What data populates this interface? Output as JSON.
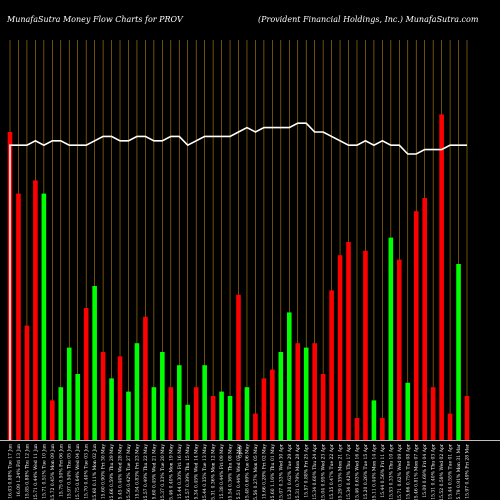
{
  "chart_data": {
    "type": "bar",
    "title_left": "MunafaSutra  Money Flow  Charts for PROV",
    "title_right": "(Provident Financial Holdings, Inc.) MunafaSutra.com",
    "categories": [
      "Tue 17 Jun",
      "Fri 13 Jun",
      "Thu 12 Jun",
      "Wed 11 Jun",
      "Tue 10 Jun",
      "Mon 09 Jun",
      "Fri 06 Jun",
      "Thu 05 Jun",
      "Wed 04 Jun",
      "Tue 03 Jun",
      "Mon 02 Jun",
      "Fri 30 May",
      "Thu 29 May",
      "Wed 28 May",
      "Tue 27 May",
      "Fri 23 May",
      "Thu 22 May",
      "Wed 21 May",
      "Tue 20 May",
      "Mon 19 May",
      "Fri 16 May",
      "Thu 15 May",
      "Wed 14 May",
      "Tue 13 May",
      "Mon 12 May",
      "Fri 09 May",
      "Thu 08 May",
      "Wed 07 May",
      "Tue 06 May",
      "Mon 05 May",
      "Fri 02 May",
      "Thu 01 May",
      "Wed 30 Apr",
      "Tue 29 Apr",
      "Mon 28 Apr",
      "Fri 25 Apr",
      "Thu 24 Apr",
      "Wed 23 Apr",
      "Tue 22 Apr",
      "Mon 21 Apr",
      "Thu 17 Apr",
      "Wed 16 Apr",
      "Tue 15 Apr",
      "Mon 14 Apr",
      "Fri 11 Apr",
      "Thu 10 Apr",
      "Wed 09 Apr",
      "Tue 08 Apr",
      "Mon 07 Apr",
      "Fri 04 Apr",
      "Thu 03 Apr",
      "Wed 02 Apr",
      "Tue 01 Apr",
      "Mon 31 Mar",
      "Fri 28 Mar"
    ],
    "tick_labels": [
      "16.03  0.88%",
      "16.09  1.24%",
      "15.85  0.88%",
      "15.71  0.44%",
      "15.71  0.51%",
      "15.72  0.45%",
      "15.75  0.50%",
      "15.97  0.54%",
      "15.75  0.64%",
      "15.70  0.40%",
      "15.60  0.11%",
      "15.60  0.90%",
      "15.66  0.59%",
      "15.45  0.44%",
      "15.56  0.42%",
      "15.54  0.83%",
      "15.57  0.49%",
      "15.60  0.45%",
      "15.37  0.33%",
      "15.46  0.40%",
      "15.44  0.30%",
      "15.57  0.39%",
      "15.34  0.45%",
      "15.44  0.35%",
      "15.31  0.36%",
      "15.38  0.44%",
      "15.54  0.36%",
      "15.51  0.44%",
      "15.48  0.69%",
      "15.56  0.27%",
      "15.66  0.28%",
      "15.60  1.16%",
      "15.07  0.33%",
      "15.20  0.62%",
      "15.31  0.79%",
      "15.57  0.88%",
      "15.34  0.60%",
      "15.04  0.95%",
      "15.35  0.47%",
      "15.29  0.35%",
      "15.34  0.42%",
      "15.46  0.63%",
      "15.20  0.26%",
      "15.11  0.44%",
      "15.44  0.56%",
      "15.53  0.33%",
      "15.71  0.62%",
      "15.66  0.75%",
      "15.46  0.81%",
      "15.09  0.69%",
      "15.31  0.40%",
      "15.52  0.58%",
      "15.44  0.55%",
      "15.79  0.91%",
      "15.97  0.49%"
    ],
    "x_annotation": "Open",
    "colors": [
      "red",
      "red",
      "red",
      "red",
      "green",
      "red",
      "green",
      "green",
      "green",
      "red",
      "green",
      "red",
      "green",
      "red",
      "green",
      "green",
      "red",
      "green",
      "green",
      "red",
      "green",
      "green",
      "red",
      "green",
      "red",
      "green",
      "green",
      "red",
      "green",
      "red",
      "red",
      "red",
      "green",
      "green",
      "red",
      "green",
      "red",
      "red",
      "red",
      "red",
      "red",
      "red",
      "red",
      "green",
      "red",
      "green",
      "red",
      "green",
      "red",
      "red",
      "red",
      "red",
      "red",
      "green",
      "red"
    ],
    "values": [
      70,
      56,
      26,
      59,
      56,
      9,
      12,
      21,
      15,
      30,
      35,
      20,
      14,
      19,
      11,
      22,
      28,
      12,
      20,
      12,
      17,
      8,
      12,
      17,
      10,
      11,
      10,
      33,
      12,
      6,
      14,
      16,
      20,
      29,
      22,
      21,
      22,
      15,
      34,
      42,
      45,
      5,
      43,
      9,
      5,
      46,
      41,
      13,
      52,
      55,
      12,
      74,
      6,
      40,
      10
    ],
    "price_line": [
      67,
      67,
      67,
      68,
      67,
      68,
      68,
      67,
      67,
      67,
      68,
      69,
      69,
      68,
      68,
      69,
      69,
      68,
      68,
      69,
      69,
      67,
      68,
      69,
      69,
      69,
      69,
      70,
      71,
      70,
      71,
      71,
      71,
      71,
      72,
      72,
      70,
      70,
      69,
      68,
      67,
      67,
      68,
      67,
      68,
      67,
      67,
      65,
      65,
      66,
      66,
      66,
      67,
      67,
      67
    ],
    "ylim": [
      0,
      100
    ],
    "grid": true
  },
  "colors": {
    "background": "#000000",
    "grid": "#b8860b",
    "green": "#00ff00",
    "red": "#ff0000",
    "line": "#ffffff",
    "axis": "#ffffff"
  }
}
